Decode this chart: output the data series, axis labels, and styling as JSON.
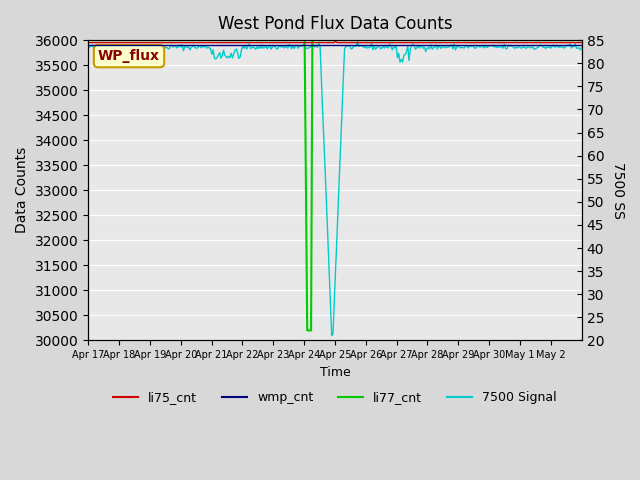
{
  "title": "West Pond Flux Data Counts",
  "xlabel": "Time",
  "ylabel_left": "Data Counts",
  "ylabel_right": "7500 SS",
  "ylim_left": [
    30000,
    36000
  ],
  "ylim_right": [
    20,
    85
  ],
  "yticks_left": [
    30000,
    30500,
    31000,
    31500,
    32000,
    32500,
    33000,
    33500,
    34000,
    34500,
    35000,
    35500,
    36000
  ],
  "yticks_right": [
    20,
    25,
    30,
    35,
    40,
    45,
    50,
    55,
    60,
    65,
    70,
    75,
    80,
    85
  ],
  "x_tick_labels": [
    "Apr 17",
    "Apr 18",
    "Apr 19",
    "Apr 20",
    "Apr 21",
    "Apr 22",
    "Apr 23",
    "Apr 24",
    "Apr 25",
    "Apr 26",
    "Apr 27",
    "Apr 28",
    "Apr 29",
    "Apr 30",
    "May 1",
    "May 2"
  ],
  "background_color": "#d8d8d8",
  "plot_bg_color": "#e8e8e8",
  "annotation_text": "WP_flux",
  "annotation_color": "#8b0000",
  "annotation_bg": "#ffffcc",
  "li77_color": "#00cc00",
  "li75_color": "#cc0000",
  "wmp_color": "#000080",
  "signal_color": "#00cccc",
  "legend_labels": [
    "li75_cnt",
    "wmp_cnt",
    "li77_cnt",
    "7500 Signal"
  ]
}
